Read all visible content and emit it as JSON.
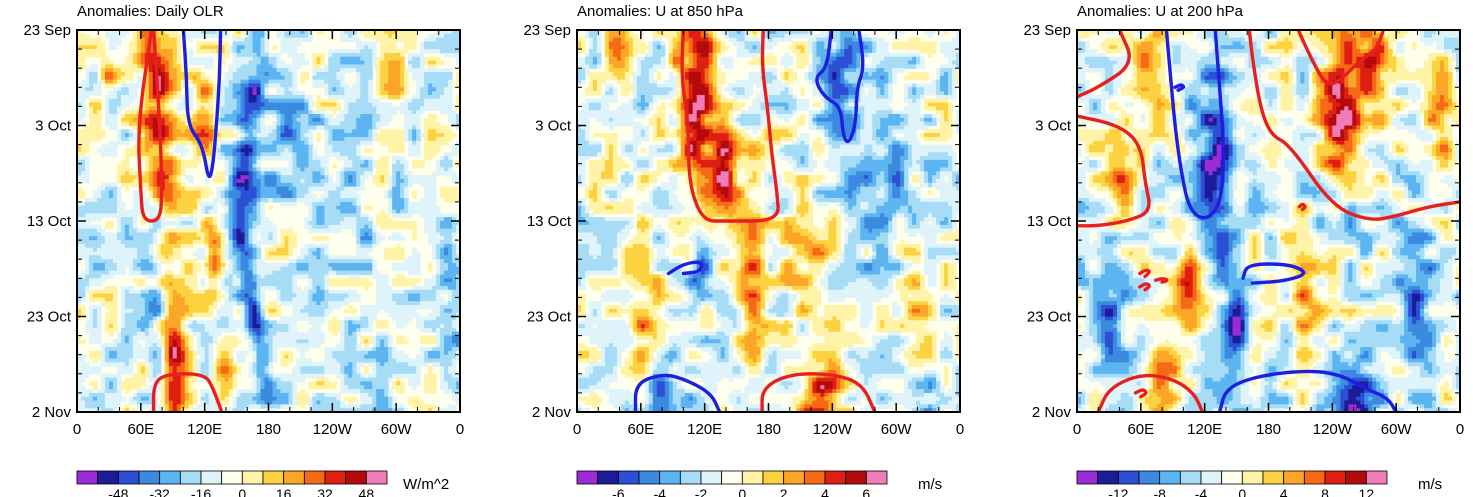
{
  "figure": "Hovmoller diagrams of anomalies",
  "x_ticks": [
    "0",
    "60E",
    "120E",
    "180",
    "120W",
    "60W",
    "0"
  ],
  "x_tick_longitudes": [
    0,
    60,
    120,
    180,
    240,
    300,
    360
  ],
  "y_ticks": [
    "23 Sep",
    "3 Oct",
    "13 Oct",
    "23 Oct",
    "2 Nov"
  ],
  "y_tick_days": [
    0,
    10,
    20,
    30,
    40
  ],
  "colors": {
    "scale": [
      "#9a2bd6",
      "#1c1c99",
      "#2d4fd6",
      "#3c8ae0",
      "#5cb4f0",
      "#a6dcf6",
      "#dff3fb",
      "#ffffee",
      "#fff3a8",
      "#fdd240",
      "#fba628",
      "#f66a16",
      "#df1f12",
      "#b30b0b",
      "#f07cb8"
    ],
    "positive_contour": "#e81f1f",
    "negative_contour": "#1e1ee0"
  },
  "chart_data": [
    {
      "type": "heatmap",
      "title": "Anomalies: Daily OLR",
      "units": "W/m^2",
      "x_axis": "longitude (0 to 360)",
      "y_axis": "time (23 Sep to 2 Nov)",
      "colorbar_ticks": [
        "-48",
        "-32",
        "-16",
        "0",
        "16",
        "32",
        "48"
      ],
      "colorbar_step": 8,
      "colorbar_range": [
        -56,
        56
      ],
      "features": [
        {
          "lon": 28,
          "day": 5,
          "value": 20,
          "width": 10,
          "length": 3
        },
        {
          "lon": 75,
          "day": 8,
          "value": 40,
          "width": 15,
          "length": 22,
          "drift": 0.5
        },
        {
          "lon": 118,
          "day": 9,
          "value": 26,
          "width": 14,
          "length": 8
        },
        {
          "lon": 160,
          "day": 13,
          "value": -36,
          "width": 11,
          "length": 14,
          "drift": -1.0
        },
        {
          "lon": 75,
          "day": 25,
          "value": -28,
          "width": 10,
          "length": 9
        },
        {
          "lon": 128,
          "day": 24,
          "value": 42,
          "width": 9,
          "length": 3
        },
        {
          "lon": 165,
          "day": 29,
          "value": -34,
          "width": 9,
          "length": 13,
          "drift": 1.5
        },
        {
          "lon": 92,
          "day": 35,
          "value": 38,
          "width": 12,
          "length": 6
        },
        {
          "lon": 140,
          "day": 37,
          "value": 24,
          "width": 12,
          "length": 5
        },
        {
          "lon": 200,
          "day": 12,
          "value": -18,
          "width": 25,
          "length": 8
        },
        {
          "lon": 260,
          "day": 20,
          "value": -14,
          "width": 25,
          "length": 8
        },
        {
          "lon": 300,
          "day": 4,
          "value": 22,
          "width": 12,
          "length": 4
        },
        {
          "lon": 360,
          "day": 30,
          "value": -16,
          "width": 20,
          "length": 10
        }
      ],
      "contours": [
        {
          "sign": "positive",
          "points": [
            [
              70,
              0
            ],
            [
              57,
              10
            ],
            [
              60,
              17
            ],
            [
              62,
              20
            ],
            [
              78,
              20
            ],
            [
              80,
              17
            ],
            [
              78,
              10
            ],
            [
              72,
              0
            ]
          ]
        },
        {
          "sign": "negative",
          "points": [
            [
              100,
              0
            ],
            [
              103,
              5
            ],
            [
              104,
              10
            ],
            [
              118,
              12
            ],
            [
              124,
              16
            ],
            [
              128,
              14
            ],
            [
              131,
              10
            ],
            [
              134,
              5
            ],
            [
              135,
              0
            ]
          ]
        },
        {
          "sign": "positive",
          "points": [
            [
              72,
              40
            ],
            [
              72,
              37
            ],
            [
              84,
              36
            ],
            [
              120,
              36
            ],
            [
              128,
              37.5
            ],
            [
              136,
              40
            ]
          ]
        }
      ]
    },
    {
      "type": "heatmap",
      "title": "Anomalies: U at 850 hPa",
      "units": "m/s",
      "x_axis": "longitude (0 to 360)",
      "y_axis": "time (23 Sep to 2 Nov)",
      "colorbar_ticks": [
        "-6",
        "-4",
        "-2",
        "0",
        "2",
        "4",
        "6"
      ],
      "colorbar_step": 1,
      "colorbar_range": [
        -7,
        7
      ],
      "features": [
        {
          "lon": 112,
          "day": 7,
          "value": 6.4,
          "width": 18,
          "length": 14
        },
        {
          "lon": 140,
          "day": 15,
          "value": 5.5,
          "width": 12,
          "length": 6
        },
        {
          "lon": 38,
          "day": 2,
          "value": 3.2,
          "width": 12,
          "length": 4
        },
        {
          "lon": 250,
          "day": 7,
          "value": -3.5,
          "width": 22,
          "length": 8
        },
        {
          "lon": 115,
          "day": 24,
          "value": -4.5,
          "width": 12,
          "length": 5
        },
        {
          "lon": 165,
          "day": 25,
          "value": 4.5,
          "width": 14,
          "length": 10
        },
        {
          "lon": 215,
          "day": 24,
          "value": 3.0,
          "width": 22,
          "length": 6
        },
        {
          "lon": 290,
          "day": 17,
          "value": -2.8,
          "width": 22,
          "length": 10
        },
        {
          "lon": 320,
          "day": 30,
          "value": 2.8,
          "width": 18,
          "length": 8
        },
        {
          "lon": 60,
          "day": 30,
          "value": 3.0,
          "width": 18,
          "length": 8
        },
        {
          "lon": 230,
          "day": 39,
          "value": 6.0,
          "width": 20,
          "length": 4
        },
        {
          "lon": 80,
          "day": 38,
          "value": -4.5,
          "width": 22,
          "length": 4
        },
        {
          "lon": 330,
          "day": 38,
          "value": -2.5,
          "width": 18,
          "length": 5
        }
      ],
      "contours": [
        {
          "sign": "positive",
          "points": [
            [
              100,
              0
            ],
            [
              98,
              5
            ],
            [
              105,
              10
            ],
            [
              105,
              16
            ],
            [
              118,
              20
            ],
            [
              140,
              20
            ],
            [
              190,
              20
            ],
            [
              188,
              17
            ],
            [
              183,
              13
            ],
            [
              179,
              8
            ],
            [
              174,
              4
            ],
            [
              175,
              0
            ]
          ]
        },
        {
          "sign": "negative",
          "points": [
            [
              239,
              0
            ],
            [
              235,
              4
            ],
            [
              223,
              5
            ],
            [
              232,
              7
            ],
            [
              248,
              8
            ],
            [
              250,
              11
            ],
            [
              255,
              12
            ],
            [
              262,
              10
            ],
            [
              263,
              6
            ],
            [
              270,
              4
            ],
            [
              265,
              0
            ]
          ]
        },
        {
          "sign": "negative",
          "points": [
            [
              86,
              25.5
            ],
            [
              100,
              24.5
            ],
            [
              118,
              24.2
            ],
            [
              116,
              25.3
            ],
            [
              100,
              25.5
            ]
          ]
        },
        {
          "sign": "negative",
          "points": [
            [
              55,
              40
            ],
            [
              55,
              37
            ],
            [
              80,
              36
            ],
            [
              100,
              36.5
            ],
            [
              126,
              38
            ],
            [
              134,
              40
            ]
          ]
        },
        {
          "sign": "positive",
          "points": [
            [
              174,
              40
            ],
            [
              174,
              37.5
            ],
            [
              200,
              36
            ],
            [
              240,
              36
            ],
            [
              268,
              37
            ],
            [
              280,
              40
            ]
          ]
        }
      ]
    },
    {
      "type": "heatmap",
      "title": "Anomalies: U at 200 hPa",
      "units": "m/s",
      "x_axis": "longitude (0 to 360)",
      "y_axis": "time (23 Sep to 2 Nov)",
      "colorbar_ticks": [
        "-12",
        "-8",
        "-4",
        "0",
        "4",
        "8",
        "12"
      ],
      "colorbar_step": 2,
      "colorbar_range": [
        -14,
        14
      ],
      "features": [
        {
          "lon": 250,
          "day": 8,
          "value": 13,
          "width": 20,
          "length": 14
        },
        {
          "lon": 280,
          "day": 3,
          "value": 9,
          "width": 14,
          "length": 6
        },
        {
          "lon": 70,
          "day": 2,
          "value": 6,
          "width": 18,
          "length": 5
        },
        {
          "lon": 40,
          "day": 15,
          "value": 8,
          "width": 16,
          "length": 7
        },
        {
          "lon": 130,
          "day": 13,
          "value": -10,
          "width": 20,
          "length": 12
        },
        {
          "lon": 340,
          "day": 8,
          "value": 6,
          "width": 14,
          "length": 8
        },
        {
          "lon": 250,
          "day": 20,
          "value": -8,
          "width": 25,
          "length": 5
        },
        {
          "lon": 105,
          "day": 27,
          "value": 9,
          "width": 12,
          "length": 5
        },
        {
          "lon": 150,
          "day": 32,
          "value": -10,
          "width": 12,
          "length": 5
        },
        {
          "lon": 215,
          "day": 27,
          "value": 6,
          "width": 16,
          "length": 6
        },
        {
          "lon": 260,
          "day": 39,
          "value": -14,
          "width": 22,
          "length": 4
        },
        {
          "lon": 80,
          "day": 36,
          "value": 7,
          "width": 16,
          "length": 6
        },
        {
          "lon": 320,
          "day": 28,
          "value": -6,
          "width": 18,
          "length": 8
        },
        {
          "lon": 30,
          "day": 28,
          "value": -7,
          "width": 18,
          "length": 8
        }
      ],
      "contours": [
        {
          "sign": "positive",
          "points": [
            [
              40,
              0
            ],
            [
              54,
              3.5
            ],
            [
              20,
              6
            ],
            [
              0,
              7
            ]
          ]
        },
        {
          "sign": "positive",
          "points": [
            [
              0,
              9
            ],
            [
              40,
              10
            ],
            [
              60,
              12
            ],
            [
              64,
              16
            ],
            [
              70,
              19
            ],
            [
              48,
              20
            ],
            [
              20,
              20.5
            ],
            [
              0,
              20.5
            ]
          ]
        },
        {
          "sign": "negative",
          "points": [
            [
              84,
              0
            ],
            [
              88,
              5
            ],
            [
              92,
              10
            ],
            [
              98,
              15
            ],
            [
              106,
              19
            ],
            [
              122,
              20
            ],
            [
              136,
              18
            ],
            [
              138,
              12
            ],
            [
              134,
              6
            ],
            [
              130,
              0
            ]
          ]
        },
        {
          "sign": "negative",
          "points": [
            [
              92,
              6
            ],
            [
              98,
              5.7
            ],
            [
              101,
              6
            ],
            [
              95,
              6.3
            ]
          ]
        },
        {
          "sign": "positive",
          "points": [
            [
              162,
              0
            ],
            [
              165,
              3
            ],
            [
              172,
              8
            ],
            [
              182,
              11
            ],
            [
              200,
              12
            ],
            [
              240,
              18.5
            ],
            [
              275,
              20
            ],
            [
              300,
              19.5
            ],
            [
              330,
              18.5
            ],
            [
              360,
              18
            ]
          ]
        },
        {
          "sign": "positive",
          "points": [
            [
              208,
              0
            ],
            [
              220,
              3
            ],
            [
              235,
              6
            ],
            [
              250,
              5
            ],
            [
              268,
              3
            ],
            [
              282,
              2
            ],
            [
              288,
              0
            ]
          ]
        },
        {
          "sign": "positive",
          "points": [
            [
              209,
              18.5
            ],
            [
              212,
              18.2
            ],
            [
              215,
              18.5
            ],
            [
              212,
              18.8
            ]
          ]
        },
        {
          "sign": "negative",
          "points": [
            [
              156,
              26
            ],
            [
              160,
              24.5
            ],
            [
              200,
              24.5
            ],
            [
              218,
              25.5
            ],
            [
              195,
              26.3
            ],
            [
              165,
              26.5
            ]
          ]
        },
        {
          "sign": "positive",
          "points": [
            [
              59,
              25.5
            ],
            [
              65,
              25.1
            ],
            [
              69,
              25.3
            ],
            [
              64,
              25.8
            ]
          ]
        },
        {
          "sign": "positive",
          "points": [
            [
              59,
              26.9
            ],
            [
              65,
              26.5
            ],
            [
              69,
              26.8
            ],
            [
              64,
              27.2
            ]
          ]
        },
        {
          "sign": "positive",
          "points": [
            [
              74,
              26.2
            ],
            [
              80,
              26.0
            ],
            [
              86,
              26.2
            ],
            [
              80,
              26.4
            ]
          ]
        },
        {
          "sign": "positive",
          "points": [
            [
              20,
              40
            ],
            [
              30,
              37.5
            ],
            [
              60,
              36
            ],
            [
              90,
              36.5
            ],
            [
              110,
              38
            ],
            [
              118,
              40
            ]
          ]
        },
        {
          "sign": "positive",
          "points": [
            [
              55,
              38
            ],
            [
              62,
              37.6
            ],
            [
              66,
              38
            ],
            [
              60,
              38.4
            ]
          ]
        },
        {
          "sign": "negative",
          "points": [
            [
              134,
              40
            ],
            [
              140,
              37.5
            ],
            [
              170,
              36.2
            ],
            [
              220,
              35.6
            ],
            [
              250,
              36.2
            ],
            [
              270,
              37.5
            ],
            [
              292,
              38.5
            ],
            [
              300,
              40
            ]
          ]
        }
      ]
    }
  ]
}
